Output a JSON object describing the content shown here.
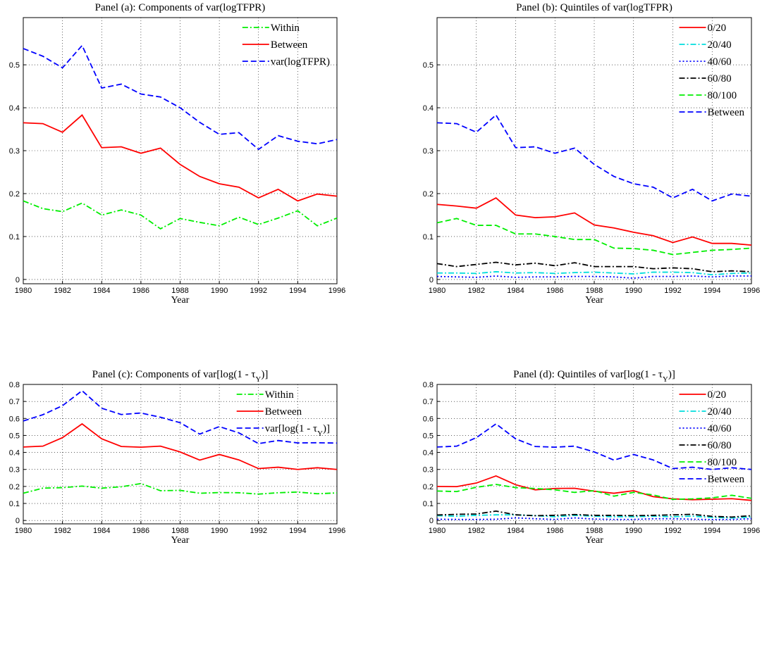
{
  "chart_data": [
    {
      "type": "line",
      "title": "Panel (a): Components of var(logTFPR)",
      "xlabel": "Year",
      "x": [
        1980,
        1981,
        1982,
        1983,
        1984,
        1985,
        1986,
        1987,
        1988,
        1989,
        1990,
        1991,
        1992,
        1993,
        1994,
        1995,
        1996
      ],
      "xlim": [
        1980,
        1996
      ],
      "xticks": [
        1980,
        1982,
        1984,
        1986,
        1988,
        1990,
        1992,
        1994,
        1996
      ],
      "ylim": [
        -0.01,
        0.61
      ],
      "yticks": [
        0,
        0.1,
        0.2,
        0.3,
        0.4,
        0.5
      ],
      "grid": true,
      "legend": "upper right",
      "series": [
        {
          "name": "Within",
          "color": "#00ee00",
          "style": "dashdot",
          "values": [
            0.183,
            0.165,
            0.158,
            0.178,
            0.15,
            0.162,
            0.15,
            0.118,
            0.142,
            0.133,
            0.125,
            0.145,
            0.128,
            0.143,
            0.16,
            0.125,
            0.143
          ]
        },
        {
          "name": "Between",
          "color": "#ff0000",
          "style": "solid",
          "values": [
            0.365,
            0.363,
            0.343,
            0.383,
            0.307,
            0.309,
            0.294,
            0.306,
            0.268,
            0.24,
            0.223,
            0.215,
            0.19,
            0.21,
            0.183,
            0.199,
            0.194
          ]
        },
        {
          "name": "var(logTFPR)",
          "color": "#0000ff",
          "style": "dashed",
          "values": [
            0.538,
            0.52,
            0.493,
            0.545,
            0.446,
            0.455,
            0.432,
            0.425,
            0.4,
            0.366,
            0.338,
            0.342,
            0.303,
            0.335,
            0.322,
            0.316,
            0.326
          ]
        }
      ]
    },
    {
      "type": "line",
      "title": "Panel (b): Quintiles of var(logTFPR)",
      "xlabel": "Year",
      "x": [
        1980,
        1981,
        1982,
        1983,
        1984,
        1985,
        1986,
        1987,
        1988,
        1989,
        1990,
        1991,
        1992,
        1993,
        1994,
        1995,
        1996
      ],
      "xlim": [
        1980,
        1996
      ],
      "xticks": [
        1980,
        1982,
        1984,
        1986,
        1988,
        1990,
        1992,
        1994,
        1996
      ],
      "ylim": [
        -0.01,
        0.61
      ],
      "yticks": [
        0,
        0.1,
        0.2,
        0.3,
        0.4,
        0.5
      ],
      "grid": true,
      "legend": "upper right",
      "series": [
        {
          "name": "0/20",
          "color": "#ff0000",
          "style": "solid",
          "values": [
            0.175,
            0.171,
            0.166,
            0.19,
            0.15,
            0.144,
            0.146,
            0.155,
            0.127,
            0.12,
            0.11,
            0.102,
            0.086,
            0.099,
            0.084,
            0.084,
            0.08
          ]
        },
        {
          "name": "20/40",
          "color": "#00dddd",
          "style": "dashdot",
          "values": [
            0.015,
            0.015,
            0.014,
            0.018,
            0.015,
            0.016,
            0.014,
            0.016,
            0.017,
            0.015,
            0.013,
            0.017,
            0.017,
            0.016,
            0.011,
            0.014,
            0.015
          ]
        },
        {
          "name": "40/60",
          "color": "#0000ff",
          "style": "dotted",
          "values": [
            0.007,
            0.006,
            0.005,
            0.008,
            0.005,
            0.006,
            0.006,
            0.007,
            0.007,
            0.006,
            0.003,
            0.007,
            0.007,
            0.008,
            0.006,
            0.008,
            0.008
          ]
        },
        {
          "name": "60/80",
          "color": "#000000",
          "style": "dashdot",
          "values": [
            0.037,
            0.03,
            0.035,
            0.04,
            0.034,
            0.038,
            0.032,
            0.039,
            0.03,
            0.03,
            0.03,
            0.025,
            0.027,
            0.025,
            0.018,
            0.02,
            0.018
          ]
        },
        {
          "name": "80/100",
          "color": "#00ee00",
          "style": "dashed",
          "values": [
            0.132,
            0.142,
            0.126,
            0.126,
            0.106,
            0.106,
            0.1,
            0.093,
            0.093,
            0.073,
            0.072,
            0.068,
            0.058,
            0.063,
            0.068,
            0.07,
            0.073
          ]
        },
        {
          "name": "Between",
          "color": "#0000ff",
          "style": "dashed",
          "values": [
            0.365,
            0.363,
            0.343,
            0.383,
            0.307,
            0.309,
            0.294,
            0.306,
            0.268,
            0.24,
            0.223,
            0.215,
            0.19,
            0.21,
            0.183,
            0.199,
            0.194
          ]
        }
      ]
    },
    {
      "type": "line",
      "title": "Panel (c): Components of var[log(1 - τ_Y)]",
      "xlabel": "Year",
      "x": [
        1980,
        1981,
        1982,
        1983,
        1984,
        1985,
        1986,
        1987,
        1988,
        1989,
        1990,
        1991,
        1992,
        1993,
        1994,
        1995,
        1996
      ],
      "xlim": [
        1980,
        1996
      ],
      "xticks": [
        1980,
        1982,
        1984,
        1986,
        1988,
        1990,
        1992,
        1994,
        1996
      ],
      "ylim": [
        -0.02,
        0.8
      ],
      "yticks": [
        0,
        0.1,
        0.2,
        0.3,
        0.4,
        0.5,
        0.6,
        0.7,
        0.8
      ],
      "grid": true,
      "legend": "upper right",
      "series": [
        {
          "name": "Within",
          "color": "#00ee00",
          "style": "dashdot",
          "values": [
            0.16,
            0.19,
            0.193,
            0.202,
            0.19,
            0.198,
            0.217,
            0.175,
            0.177,
            0.16,
            0.164,
            0.163,
            0.155,
            0.163,
            0.167,
            0.157,
            0.162
          ]
        },
        {
          "name": "Between",
          "color": "#ff0000",
          "style": "solid",
          "values": [
            0.432,
            0.437,
            0.487,
            0.568,
            0.48,
            0.435,
            0.431,
            0.437,
            0.403,
            0.355,
            0.388,
            0.356,
            0.305,
            0.313,
            0.3,
            0.31,
            0.3
          ]
        },
        {
          "name": "var[log(1 - τ_Y)]",
          "color": "#0000ff",
          "style": "dashed",
          "values": [
            0.585,
            0.622,
            0.675,
            0.763,
            0.66,
            0.623,
            0.632,
            0.607,
            0.575,
            0.508,
            0.552,
            0.515,
            0.452,
            0.47,
            0.456,
            0.457,
            0.455
          ]
        }
      ]
    },
    {
      "type": "line",
      "title": "Panel (d): Quintiles of var[log(1 - τ_Y)]",
      "xlabel": "Year",
      "x": [
        1980,
        1981,
        1982,
        1983,
        1984,
        1985,
        1986,
        1987,
        1988,
        1989,
        1990,
        1991,
        1992,
        1993,
        1994,
        1995,
        1996
      ],
      "xlim": [
        1980,
        1996
      ],
      "xticks": [
        1980,
        1982,
        1984,
        1986,
        1988,
        1990,
        1992,
        1994,
        1996
      ],
      "ylim": [
        -0.02,
        0.8
      ],
      "yticks": [
        0,
        0.1,
        0.2,
        0.3,
        0.4,
        0.5,
        0.6,
        0.7,
        0.8
      ],
      "grid": true,
      "legend": "upper right",
      "series": [
        {
          "name": "0/20",
          "color": "#ff0000",
          "style": "solid",
          "values": [
            0.2,
            0.199,
            0.22,
            0.262,
            0.21,
            0.18,
            0.188,
            0.189,
            0.172,
            0.16,
            0.175,
            0.14,
            0.127,
            0.122,
            0.125,
            0.128,
            0.118
          ]
        },
        {
          "name": "20/40",
          "color": "#00dddd",
          "style": "dashdot",
          "values": [
            0.028,
            0.025,
            0.03,
            0.033,
            0.033,
            0.028,
            0.022,
            0.03,
            0.025,
            0.022,
            0.022,
            0.025,
            0.022,
            0.025,
            0.018,
            0.015,
            0.02
          ]
        },
        {
          "name": "40/60",
          "color": "#0000ff",
          "style": "dotted",
          "values": [
            0.007,
            0.006,
            0.006,
            0.007,
            0.015,
            0.01,
            0.006,
            0.015,
            0.008,
            0.006,
            0.006,
            0.01,
            0.01,
            0.007,
            0.005,
            0.006,
            0.01
          ]
        },
        {
          "name": "60/80",
          "color": "#000000",
          "style": "dashdot",
          "values": [
            0.032,
            0.036,
            0.038,
            0.055,
            0.033,
            0.028,
            0.03,
            0.035,
            0.03,
            0.03,
            0.028,
            0.03,
            0.033,
            0.036,
            0.024,
            0.02,
            0.028
          ]
        },
        {
          "name": "80/100",
          "color": "#00ee00",
          "style": "dashed",
          "values": [
            0.173,
            0.17,
            0.195,
            0.212,
            0.193,
            0.188,
            0.18,
            0.165,
            0.175,
            0.143,
            0.165,
            0.15,
            0.124,
            0.127,
            0.133,
            0.148,
            0.13
          ]
        },
        {
          "name": "Between",
          "color": "#0000ff",
          "style": "dashed",
          "values": [
            0.432,
            0.437,
            0.487,
            0.568,
            0.48,
            0.435,
            0.431,
            0.437,
            0.403,
            0.355,
            0.388,
            0.356,
            0.305,
            0.313,
            0.3,
            0.31,
            0.3
          ]
        }
      ]
    }
  ]
}
